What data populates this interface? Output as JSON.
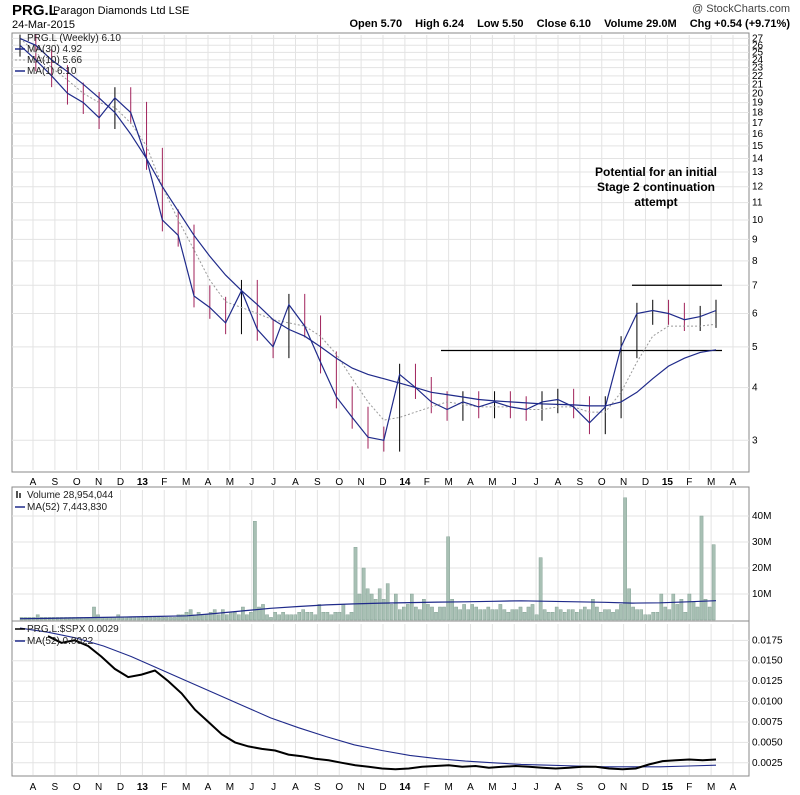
{
  "header": {
    "symbol": "PRG.L",
    "name": "Paragon Diamonds Ltd",
    "exchange": "LSE",
    "date": "24-Mar-2015",
    "watermark": "@ StockCharts.com",
    "open": "Open 5.70",
    "high": "High 6.24",
    "low": "Low 5.50",
    "close": "Close 6.10",
    "volume": "Volume 29.0M",
    "chg": "Chg +0.54 (+9.71%)"
  },
  "legend": {
    "price": "PRG.L (Weekly) 6.10",
    "ma30": "MA(30) 4.92",
    "ma10": "MA(10) 5.66",
    "ma1": "MA(1) 6.10",
    "volume": "Volume 28,954,044",
    "vma52": "MA(52) 7,443,830",
    "ratio": "PRG.L:$SPX 0.0029",
    "rma52": "MA(52) 0.0022"
  },
  "annotation": {
    "line1": "Potential for an initial",
    "line2": "Stage 2 continuation",
    "line3": "attempt"
  },
  "colors": {
    "ma30": "#1f2a8a",
    "ma10": "#999999",
    "ma1": "#1f2a8a",
    "up_bar": "#000000",
    "down_bar": "#a0225a",
    "volume_bar": "#a8c0b4",
    "grid": "#e3e3e3"
  },
  "chart_data": {
    "type": "line",
    "x_labels": [
      "A",
      "S",
      "O",
      "N",
      "D",
      "13",
      "F",
      "M",
      "A",
      "M",
      "J",
      "J",
      "A",
      "S",
      "O",
      "N",
      "D",
      "14",
      "F",
      "M",
      "A",
      "M",
      "J",
      "J",
      "A",
      "S",
      "O",
      "N",
      "D",
      "15",
      "F",
      "M",
      "A"
    ],
    "price_axis": {
      "scale": "log",
      "ticks": [
        "27",
        "26",
        "25",
        "24",
        "23",
        "22",
        "21",
        "20",
        "19",
        "18",
        "17",
        "16",
        "15",
        "14",
        "13",
        "12",
        "11",
        "10",
        "9",
        "8",
        "7",
        "6",
        "5",
        "4",
        "3"
      ]
    },
    "volume_axis": {
      "ticks": [
        "40M",
        "30M",
        "20M",
        "10M"
      ]
    },
    "ratio_axis": {
      "ticks": [
        "0.0175",
        "0.0150",
        "0.0125",
        "0.0100",
        "0.0075",
        "0.0050",
        "0.0025"
      ]
    },
    "resistance_levels": [
      4.9,
      7.0
    ],
    "series": [
      {
        "name": "MA(1) 6.10",
        "values": [
          26,
          24,
          22,
          20,
          19,
          17.5,
          19.5,
          18,
          14,
          10,
          9.2,
          6.6,
          6.2,
          5.7,
          6.8,
          5.5,
          5,
          6.3,
          5.6,
          4.6,
          3.8,
          3.4,
          3.05,
          3.0,
          4.3,
          4.0,
          3.7,
          3.55,
          3.7,
          3.6,
          3.7,
          3.6,
          3.55,
          3.7,
          3.75,
          3.6,
          3.3,
          3.6,
          5.0,
          6.0,
          6.1,
          6.0,
          5.8,
          5.9,
          6.1
        ]
      },
      {
        "name": "MA(10) 5.66",
        "values": [
          27,
          25,
          23,
          21.5,
          20,
          19,
          18.5,
          17,
          15,
          12,
          10,
          8.5,
          7.2,
          6.4,
          6.2,
          6.0,
          5.8,
          5.7,
          5.6,
          5.3,
          4.8,
          4.2,
          3.7,
          3.35,
          3.4,
          3.5,
          3.6,
          3.7,
          3.65,
          3.6,
          3.6,
          3.6,
          3.55,
          3.55,
          3.6,
          3.6,
          3.5,
          3.5,
          3.9,
          4.6,
          5.3,
          5.6,
          5.6,
          5.6,
          5.66
        ]
      },
      {
        "name": "MA(30) 4.92",
        "values": [
          27,
          26,
          24,
          22.5,
          21,
          19.5,
          18,
          16,
          14,
          12,
          10.5,
          9.2,
          8.2,
          7.4,
          6.8,
          6.3,
          5.8,
          5.5,
          5.3,
          5.0,
          4.7,
          4.45,
          4.3,
          4.2,
          4.1,
          4.0,
          3.9,
          3.85,
          3.8,
          3.75,
          3.72,
          3.7,
          3.68,
          3.66,
          3.65,
          3.64,
          3.62,
          3.62,
          3.7,
          3.9,
          4.2,
          4.5,
          4.7,
          4.85,
          4.92
        ]
      },
      {
        "name": "Volume 28,954,044",
        "unit": "M",
        "values": [
          1,
          1,
          1,
          1,
          2,
          1,
          1,
          1,
          1,
          1,
          1,
          1,
          1,
          1,
          1,
          1,
          1,
          1,
          5,
          2,
          1,
          1,
          1,
          1,
          2,
          1,
          1,
          1,
          1,
          1,
          1,
          1,
          1,
          1,
          1,
          1,
          1,
          1,
          1,
          2,
          2,
          3,
          4,
          2,
          3,
          2,
          2,
          3,
          4,
          2,
          4,
          2,
          3,
          3,
          2,
          5,
          2,
          3,
          38,
          5,
          6,
          2,
          1,
          3,
          2,
          3,
          2,
          2,
          2,
          3,
          4,
          3,
          3,
          2,
          6,
          3,
          3,
          2,
          3,
          3,
          6,
          2,
          3,
          28,
          10,
          20,
          12,
          10,
          8,
          12,
          8,
          14,
          6,
          10,
          4,
          5,
          6,
          10,
          5,
          4,
          8,
          6,
          5,
          3,
          5,
          5,
          32,
          8,
          5,
          4,
          6,
          4,
          6,
          5,
          4,
          4,
          5,
          4,
          4,
          6,
          4,
          3,
          4,
          4,
          5,
          3,
          5,
          6,
          2,
          24,
          4,
          3,
          3,
          5,
          4,
          3,
          4,
          4,
          3,
          4,
          5,
          4,
          8,
          5,
          3,
          4,
          4,
          3,
          4,
          6,
          47,
          12,
          5,
          4,
          4,
          2,
          2,
          3,
          3,
          10,
          5,
          4,
          10,
          6,
          8,
          3,
          10,
          7,
          5,
          40,
          8,
          5,
          29
        ]
      },
      {
        "name": "MA(52) 7,443,830",
        "unit": "M",
        "values": [
          0.5,
          0.6,
          0.8,
          1.0,
          1.2,
          1.4,
          1.6,
          2.5,
          3.5,
          4.5,
          5.2,
          5.8,
          6.2,
          6.5,
          6.7,
          6.9,
          7.0,
          7.2,
          7.4,
          7.2,
          7.0,
          6.8,
          6.5,
          6.6,
          7.0,
          7.44
        ]
      },
      {
        "name": "PRG.L:$SPX 0.0029",
        "values": [
          0.018,
          0.0172,
          0.0175,
          0.0168,
          0.0155,
          0.014,
          0.013,
          0.0133,
          0.0138,
          0.0125,
          0.011,
          0.009,
          0.0075,
          0.006,
          0.005,
          0.0045,
          0.0042,
          0.004,
          0.0035,
          0.0033,
          0.003,
          0.0028,
          0.0025,
          0.0022,
          0.002,
          0.0018,
          0.0017,
          0.0018,
          0.002,
          0.0021,
          0.0022,
          0.002,
          0.0021,
          0.0019,
          0.002,
          0.0021,
          0.002,
          0.0019,
          0.0018,
          0.0019,
          0.002,
          0.002,
          0.0018,
          0.0017,
          0.0018,
          0.0023,
          0.0027,
          0.0028,
          0.0029,
          0.0028,
          0.0029
        ]
      },
      {
        "name": "MA(52) 0.0022",
        "values": [
          0.019,
          0.0185,
          0.0178,
          0.0168,
          0.0155,
          0.014,
          0.0125,
          0.011,
          0.0095,
          0.008,
          0.0068,
          0.0057,
          0.0047,
          0.004,
          0.0034,
          0.003,
          0.0027,
          0.0025,
          0.0023,
          0.0022,
          0.0021,
          0.002,
          0.002,
          0.002,
          0.0021,
          0.0022
        ]
      }
    ]
  }
}
